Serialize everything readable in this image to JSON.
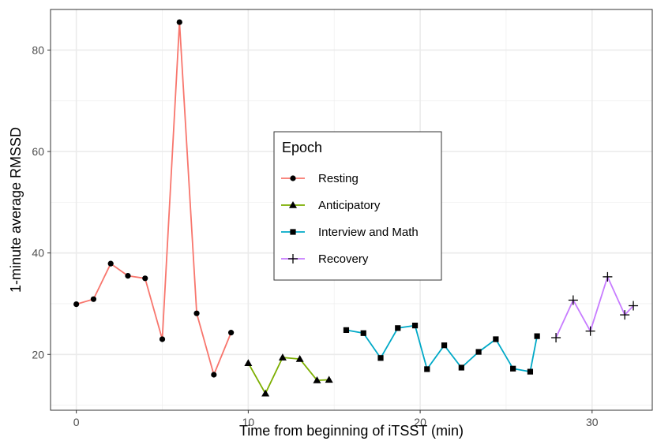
{
  "chart_data": {
    "type": "line",
    "title": "",
    "xlabel": "Time from beginning of iTSST (min)",
    "ylabel": "1-minute average RMSSD",
    "xlim": [
      -1.5,
      33.5
    ],
    "ylim": [
      9,
      88
    ],
    "x_ticks": [
      0,
      10,
      20,
      30
    ],
    "y_ticks": [
      20,
      40,
      60,
      80
    ],
    "grid": true,
    "legend": {
      "title": "Epoch",
      "placement": "center"
    },
    "series": [
      {
        "name": "Resting",
        "color": "#f8766d",
        "marker": "circle",
        "points": [
          [
            0,
            29.9
          ],
          [
            1,
            30.9
          ],
          [
            2,
            37.9
          ],
          [
            3,
            35.5
          ],
          [
            4,
            35.0
          ],
          [
            5,
            23.0
          ],
          [
            6,
            85.5
          ],
          [
            7,
            28.1
          ],
          [
            8,
            16.0
          ],
          [
            9,
            24.3
          ]
        ]
      },
      {
        "name": "Anticipatory",
        "color": "#7cae00",
        "marker": "triangle",
        "points": [
          [
            10,
            18.3
          ],
          [
            11,
            12.3
          ],
          [
            12,
            19.4
          ],
          [
            13,
            19.1
          ],
          [
            14,
            14.9
          ],
          [
            14.7,
            15.0
          ]
        ]
      },
      {
        "name": "Interview and Math",
        "color": "#00a9c7",
        "marker": "square",
        "points": [
          [
            15.7,
            24.8
          ],
          [
            16.7,
            24.2
          ],
          [
            17.7,
            19.3
          ],
          [
            18.7,
            25.2
          ],
          [
            19.7,
            25.7
          ],
          [
            20.4,
            17.1
          ],
          [
            21.4,
            21.8
          ],
          [
            22.4,
            17.4
          ],
          [
            23.4,
            20.5
          ],
          [
            24.4,
            23.0
          ],
          [
            25.4,
            17.2
          ],
          [
            26.4,
            16.6
          ],
          [
            26.8,
            23.6
          ]
        ]
      },
      {
        "name": "Recovery",
        "color": "#c77cff",
        "marker": "cross",
        "points": [
          [
            27.9,
            23.3
          ],
          [
            28.9,
            30.7
          ],
          [
            29.9,
            24.6
          ],
          [
            30.9,
            35.3
          ],
          [
            31.9,
            27.8
          ],
          [
            32.4,
            29.6
          ]
        ]
      }
    ]
  }
}
